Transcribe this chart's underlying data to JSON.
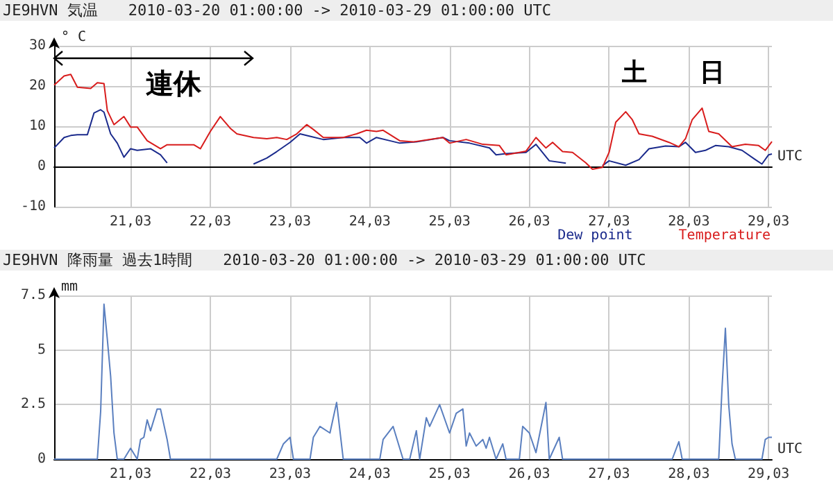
{
  "chart_data": [
    {
      "type": "line",
      "title": "JE9HVN 気温",
      "subtitle": "2010-03-20 01:00:00 -> 2010-03-29 01:00:00 UTC",
      "xlabel": "UTC",
      "ylabel": "° C",
      "series": [
        {
          "name": "Dew point",
          "color": "#1a2a8c",
          "x": [
            "2010-03-20T01:00",
            "2010-03-20T04:00",
            "2010-03-20T06:00",
            "2010-03-20T08:00",
            "2010-03-20T11:00",
            "2010-03-20T13:00",
            "2010-03-20T15:00",
            "2010-03-20T16:00",
            "2010-03-20T18:00",
            "2010-03-20T20:00",
            "2010-03-20T22:00",
            "2010-03-21T00:00",
            "2010-03-21T02:00",
            "2010-03-21T06:00",
            "2010-03-21T09:00",
            "2010-03-21T11:00",
            "2010-03-22T00:00",
            "2010-03-22T13:00",
            "2010-03-22T17:00",
            "2010-03-22T20:00",
            "2010-03-23T00:00",
            "2010-03-23T03:00",
            "2010-03-23T06:00",
            "2010-03-23T10:00",
            "2010-03-23T16:00",
            "2010-03-23T21:00",
            "2010-03-23T23:00",
            "2010-03-24T02:00",
            "2010-03-24T06:00",
            "2010-03-24T09:00",
            "2010-03-24T14:00",
            "2010-03-24T22:00",
            "2010-03-25T00:00",
            "2010-03-25T06:00",
            "2010-03-25T12:00",
            "2010-03-25T14:00",
            "2010-03-25T17:00",
            "2010-03-25T23:00",
            "2010-03-26T02:00",
            "2010-03-26T06:00",
            "2010-03-26T11:00",
            "2010-03-26T16:00",
            "2010-03-26T22:00",
            "2010-03-27T00:00",
            "2010-03-27T05:00",
            "2010-03-27T09:00",
            "2010-03-27T12:00",
            "2010-03-27T17:00",
            "2010-03-27T21:00",
            "2010-03-27T23:00",
            "2010-03-28T02:00",
            "2010-03-28T05:00",
            "2010-03-28T08:00",
            "2010-03-28T12:00",
            "2010-03-28T16:00",
            "2010-03-28T20:00",
            "2010-03-28T22:00",
            "2010-03-29T00:00",
            "2010-03-29T01:00"
          ],
          "values": [
            4.6,
            7.2,
            7.7,
            7.9,
            7.9,
            13.3,
            14.1,
            13.5,
            8.1,
            5.8,
            2.3,
            4.4,
            4.0,
            4.4,
            2.9,
            0.9,
            null,
            0.6,
            2.1,
            3.7,
            6.0,
            8.1,
            7.5,
            6.7,
            7.2,
            7.2,
            5.8,
            7.2,
            6.4,
            5.8,
            6.1,
            7.2,
            6.4,
            5.8,
            4.6,
            2.9,
            3.2,
            3.5,
            5.5,
            1.4,
            0.8,
            null,
            0.2,
            1.4,
            0.3,
            1.7,
            4.4,
            5.1,
            4.9,
            6.0,
            3.5,
            4.0,
            5.2,
            4.9,
            4.0,
            1.7,
            0.6,
            2.9,
            3.1
          ]
        },
        {
          "name": "Temperature",
          "color": "#d81c1c",
          "x": [
            "2010-03-20T01:00",
            "2010-03-20T04:00",
            "2010-03-20T06:00",
            "2010-03-20T08:00",
            "2010-03-20T12:00",
            "2010-03-20T14:00",
            "2010-03-20T16:00",
            "2010-03-20T17:00",
            "2010-03-20T19:00",
            "2010-03-20T22:00",
            "2010-03-21T00:00",
            "2010-03-21T02:00",
            "2010-03-21T05:00",
            "2010-03-21T09:00",
            "2010-03-21T11:00",
            "2010-03-21T19:00",
            "2010-03-21T21:00",
            "2010-03-22T00:00",
            "2010-03-22T03:00",
            "2010-03-22T06:00",
            "2010-03-22T08:00",
            "2010-03-22T13:00",
            "2010-03-22T17:00",
            "2010-03-22T20:00",
            "2010-03-22T23:00",
            "2010-03-23T02:00",
            "2010-03-23T05:00",
            "2010-03-23T07:00",
            "2010-03-23T10:00",
            "2010-03-23T16:00",
            "2010-03-23T20:00",
            "2010-03-23T23:00",
            "2010-03-24T02:00",
            "2010-03-24T04:00",
            "2010-03-24T09:00",
            "2010-03-24T13:00",
            "2010-03-24T22:00",
            "2010-03-25T00:00",
            "2010-03-25T05:00",
            "2010-03-25T10:00",
            "2010-03-25T15:00",
            "2010-03-25T17:00",
            "2010-03-25T23:00",
            "2010-03-26T02:00",
            "2010-03-26T05:00",
            "2010-03-26T07:00",
            "2010-03-26T10:00",
            "2010-03-26T13:00",
            "2010-03-26T17:00",
            "2010-03-26T19:00",
            "2010-03-26T22:00",
            "2010-03-27T00:00",
            "2010-03-27T02:00",
            "2010-03-27T05:00",
            "2010-03-27T07:00",
            "2010-03-27T09:00",
            "2010-03-27T13:00",
            "2010-03-27T18:00",
            "2010-03-27T21:00",
            "2010-03-27T23:00",
            "2010-03-28T01:00",
            "2010-03-28T04:00",
            "2010-03-28T06:00",
            "2010-03-28T09:00",
            "2010-03-28T13:00",
            "2010-03-28T17:00",
            "2010-03-28T21:00",
            "2010-03-28T23:00",
            "2010-03-29T01:00"
          ],
          "values": [
            20.2,
            22.5,
            22.9,
            19.7,
            19.4,
            20.8,
            20.6,
            13.9,
            10.4,
            12.4,
            9.8,
            9.8,
            6.4,
            4.4,
            5.4,
            5.4,
            4.4,
            8.7,
            12.4,
            9.5,
            8.1,
            7.2,
            6.9,
            7.2,
            6.7,
            8.1,
            10.4,
            9.2,
            7.2,
            7.2,
            8.1,
            9.0,
            8.7,
            9.0,
            6.4,
            6.1,
            7.2,
            5.8,
            6.7,
            5.5,
            5.2,
            2.9,
            3.8,
            7.2,
            4.6,
            6.0,
            3.7,
            3.5,
            0.9,
            -0.7,
            -0.2,
            3.5,
            11.0,
            13.6,
            11.6,
            8.1,
            7.5,
            6.0,
            4.9,
            6.9,
            11.6,
            14.5,
            8.7,
            8.1,
            4.9,
            5.5,
            5.2,
            4.0,
            6.2
          ]
        }
      ],
      "xlim": [
        "2010-03-20T01:00",
        "2010-03-29T01:00"
      ],
      "xticks": [
        {
          "value": "2010-03-21",
          "label": "21,03"
        },
        {
          "value": "2010-03-22",
          "label": "22,03"
        },
        {
          "value": "2010-03-23",
          "label": "23,03"
        },
        {
          "value": "2010-03-24",
          "label": "24,03"
        },
        {
          "value": "2010-03-25",
          "label": "25,03"
        },
        {
          "value": "2010-03-26",
          "label": "26,03"
        },
        {
          "value": "2010-03-27",
          "label": "27,03"
        },
        {
          "value": "2010-03-28",
          "label": "28,03"
        },
        {
          "value": "2010-03-29",
          "label": "29,03"
        }
      ],
      "ylim": [
        -10,
        30
      ],
      "yticks": [
        -10,
        0,
        10,
        20,
        30
      ],
      "grid": true,
      "legend": "bottom right",
      "marker": "none",
      "annotations": [
        "連休",
        "土",
        "日"
      ]
    },
    {
      "type": "line",
      "title": "JE9HVN 降雨量 過去1時間",
      "subtitle": "2010-03-20 01:00:00 -> 2010-03-29 01:00:00 UTC",
      "xlabel": "UTC",
      "ylabel": "mm",
      "color": "#5a7fbf",
      "x": [
        "2010-03-20T01:00",
        "2010-03-20T14:00",
        "2010-03-20T15:00",
        "2010-03-20T16:00",
        "2010-03-20T17:00",
        "2010-03-20T18:00",
        "2010-03-20T19:00",
        "2010-03-20T20:00",
        "2010-03-20T22:00",
        "2010-03-21T00:00",
        "2010-03-21T02:00",
        "2010-03-21T03:00",
        "2010-03-21T04:00",
        "2010-03-21T05:00",
        "2010-03-21T06:00",
        "2010-03-21T08:00",
        "2010-03-21T09:00",
        "2010-03-21T11:00",
        "2010-03-21T12:00",
        "2010-03-22T20:00",
        "2010-03-22T22:00",
        "2010-03-23T00:00",
        "2010-03-23T01:00",
        "2010-03-23T06:00",
        "2010-03-23T07:00",
        "2010-03-23T09:00",
        "2010-03-23T12:00",
        "2010-03-23T14:00",
        "2010-03-23T16:00",
        "2010-03-24T03:00",
        "2010-03-24T04:00",
        "2010-03-24T07:00",
        "2010-03-24T10:00",
        "2010-03-24T12:00",
        "2010-03-24T14:00",
        "2010-03-24T15:00",
        "2010-03-24T17:00",
        "2010-03-24T18:00",
        "2010-03-24T21:00",
        "2010-03-25T00:00",
        "2010-03-25T02:00",
        "2010-03-25T04:00",
        "2010-03-25T05:00",
        "2010-03-25T06:00",
        "2010-03-25T08:00",
        "2010-03-25T10:00",
        "2010-03-25T11:00",
        "2010-03-25T12:00",
        "2010-03-25T14:00",
        "2010-03-25T16:00",
        "2010-03-25T17:00",
        "2010-03-25T21:00",
        "2010-03-25T22:00",
        "2010-03-26T00:00",
        "2010-03-26T02:00",
        "2010-03-26T05:00",
        "2010-03-26T06:00",
        "2010-03-26T09:00",
        "2010-03-26T10:00",
        "2010-03-27T19:00",
        "2010-03-27T21:00",
        "2010-03-27T22:00",
        "2010-03-28T09:00",
        "2010-03-28T10:00",
        "2010-03-28T11:00",
        "2010-03-28T12:00",
        "2010-03-28T13:00",
        "2010-03-28T14:00",
        "2010-03-28T22:00",
        "2010-03-28T23:00",
        "2010-03-29T00:00",
        "2010-03-29T01:00"
      ],
      "values": [
        0,
        0,
        2.2,
        7.1,
        5.5,
        3.8,
        1.2,
        0,
        0,
        0.5,
        0,
        0.9,
        1.0,
        1.8,
        1.3,
        2.3,
        2.3,
        0.9,
        0,
        0,
        0.7,
        1.0,
        0,
        0,
        1.0,
        1.5,
        1.2,
        2.6,
        0,
        0,
        0.9,
        1.5,
        0,
        0,
        1.3,
        0,
        1.9,
        1.5,
        2.5,
        1.2,
        2.1,
        2.3,
        0.6,
        1.2,
        0.6,
        0.9,
        0.5,
        1.0,
        0,
        0.7,
        0,
        0,
        1.5,
        1.2,
        0.3,
        2.6,
        0,
        1.0,
        0,
        0,
        0.8,
        0,
        0,
        3.3,
        6.0,
        2.5,
        0.7,
        0,
        0,
        0.9,
        1.0,
        1.0
      ],
      "xlim": [
        "2010-03-20T01:00",
        "2010-03-29T01:00"
      ],
      "xticks": [
        {
          "value": "2010-03-21",
          "label": "21,03"
        },
        {
          "value": "2010-03-22",
          "label": "22,03"
        },
        {
          "value": "2010-03-23",
          "label": "23,03"
        },
        {
          "value": "2010-03-24",
          "label": "24,03"
        },
        {
          "value": "2010-03-25",
          "label": "25,03"
        },
        {
          "value": "2010-03-26",
          "label": "26,03"
        },
        {
          "value": "2010-03-27",
          "label": "27,03"
        },
        {
          "value": "2010-03-28",
          "label": "28,03"
        },
        {
          "value": "2010-03-29",
          "label": "29,03"
        }
      ],
      "ylim": [
        0,
        7.5
      ],
      "yticks": [
        0,
        2.5,
        5,
        7.5
      ],
      "grid": true,
      "marker": "none"
    }
  ]
}
